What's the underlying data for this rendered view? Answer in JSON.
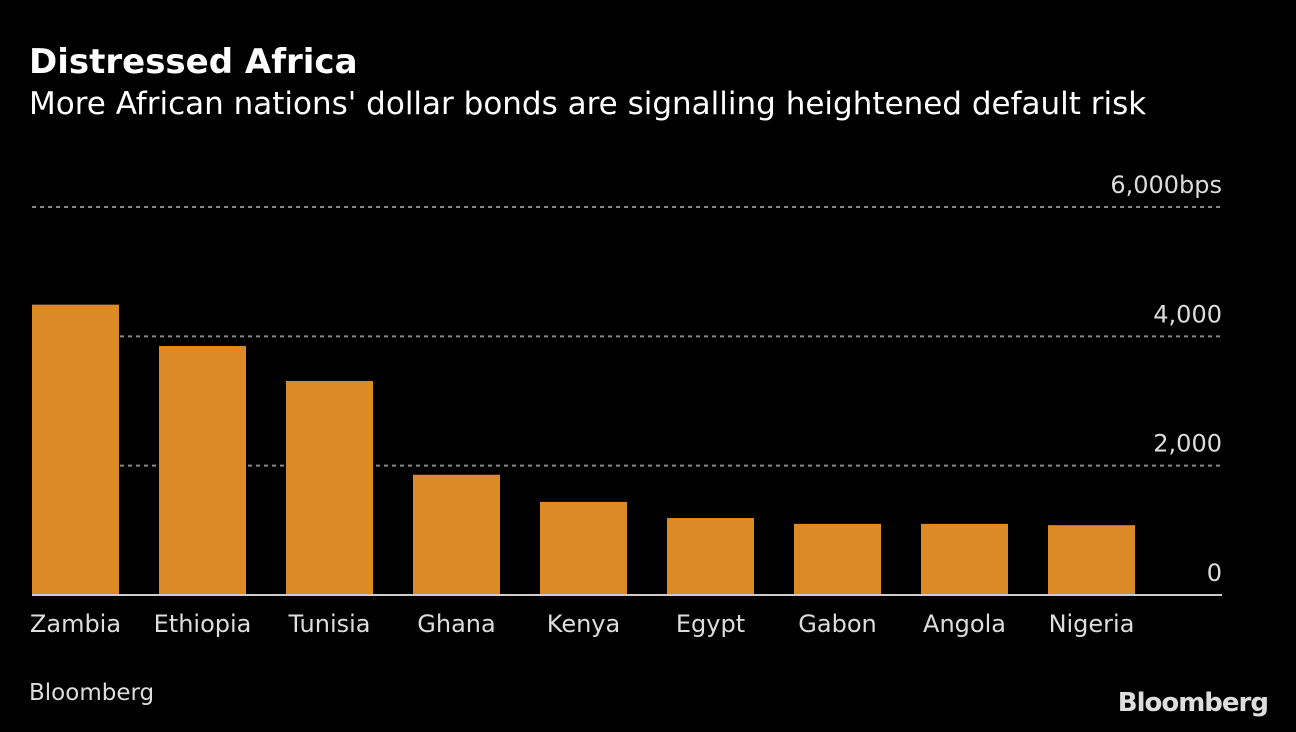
{
  "title": "Distressed Africa",
  "subtitle": "More African nations' dollar bonds are signalling heightened default risk",
  "source": "Bloomberg",
  "logo": "Bloomberg",
  "colors": {
    "bar": "#DB8A25",
    "background": "#000000",
    "grid": "#888888"
  },
  "chart_data": {
    "type": "bar",
    "title": "Distressed Africa",
    "subtitle": "More African nations' dollar bonds are signalling heightened default risk",
    "categories": [
      "Zambia",
      "Ethiopia",
      "Tunisia",
      "Ghana",
      "Kenya",
      "Egypt",
      "Gabon",
      "Angola",
      "Nigeria"
    ],
    "values": [
      4490,
      3850,
      3310,
      1860,
      1440,
      1190,
      1100,
      1100,
      1080
    ],
    "unit": "bps",
    "ylim": [
      0,
      6000
    ],
    "yticks": [
      0,
      2000,
      4000,
      6000
    ],
    "ytick_labels": [
      "0",
      "2,000",
      "4,000",
      "6,000bps"
    ],
    "grid": true,
    "yaxis_position": "right"
  }
}
